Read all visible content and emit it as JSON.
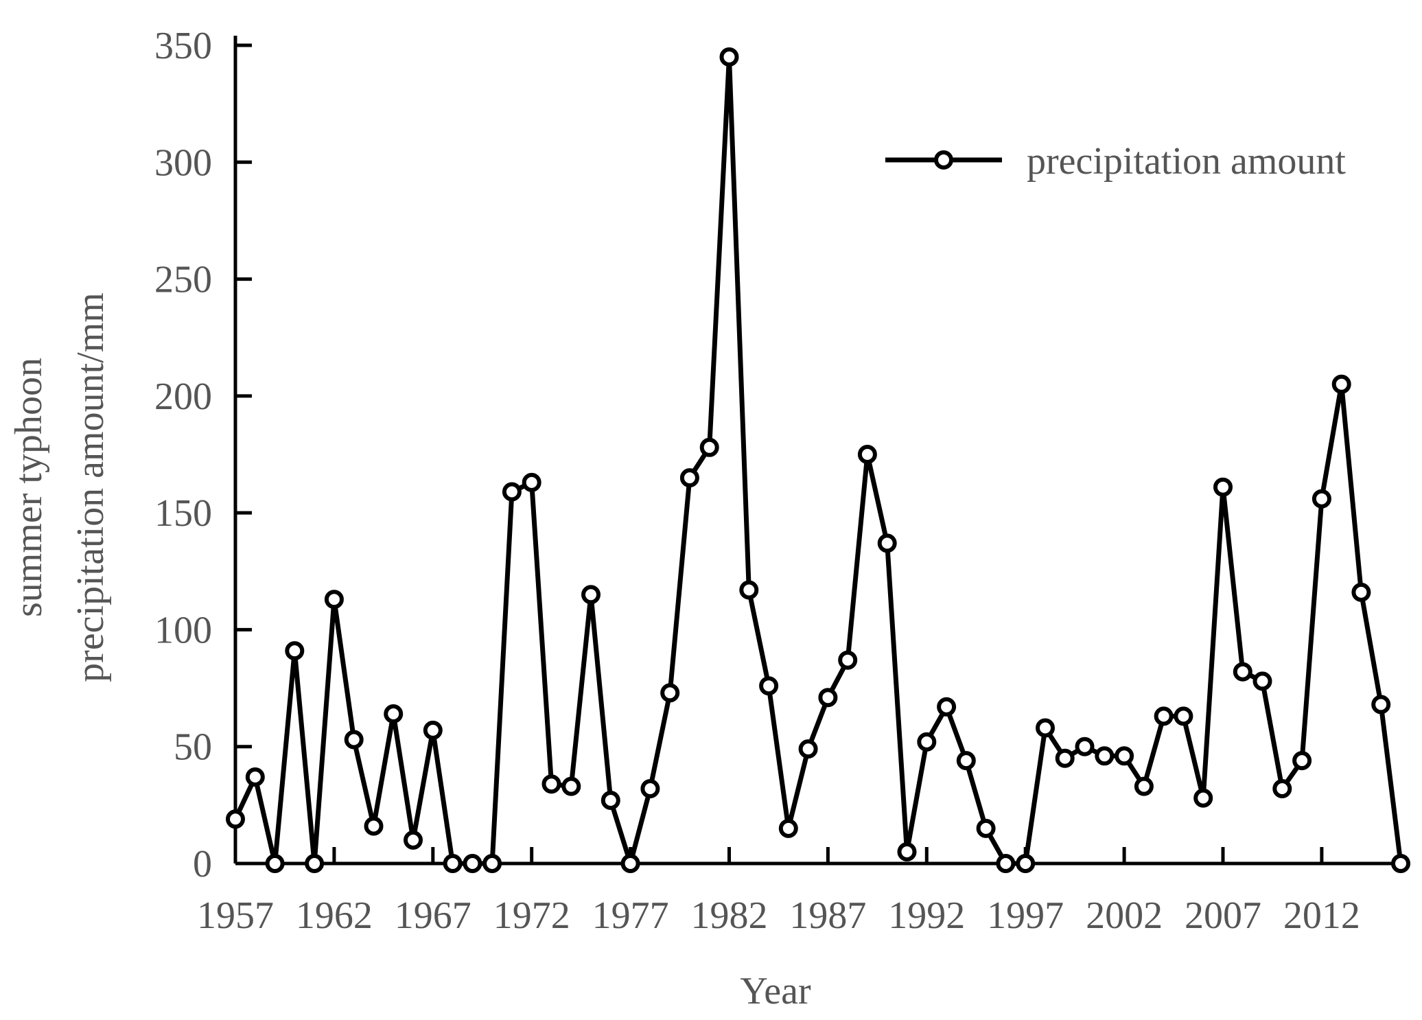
{
  "chart_data": {
    "type": "line",
    "xlabel": "Year",
    "ylabel_lines": [
      "summer typhoon",
      "precipitation amount/mm"
    ],
    "ylim": [
      0,
      350
    ],
    "yticks": [
      0,
      50,
      100,
      150,
      200,
      250,
      300,
      350
    ],
    "xticks": [
      1957,
      1962,
      1967,
      1972,
      1977,
      1982,
      1987,
      1992,
      1997,
      2002,
      2007,
      2012
    ],
    "legend": {
      "position": "top-right",
      "label": "precipitation amount"
    },
    "grid": false,
    "series": [
      {
        "name": "precipitation amount",
        "color": "#000000",
        "x": [
          1957,
          1958,
          1959,
          1960,
          1961,
          1962,
          1963,
          1964,
          1965,
          1966,
          1967,
          1968,
          1969,
          1970,
          1971,
          1972,
          1973,
          1974,
          1975,
          1976,
          1977,
          1978,
          1979,
          1980,
          1981,
          1982,
          1983,
          1984,
          1985,
          1986,
          1987,
          1988,
          1989,
          1990,
          1991,
          1992,
          1993,
          1994,
          1995,
          1996,
          1997,
          1998,
          1999,
          2000,
          2001,
          2002,
          2003,
          2004,
          2005,
          2006,
          2007,
          2008,
          2009,
          2010,
          2011,
          2012,
          2013,
          2014,
          2015,
          2016
        ],
        "values": [
          19,
          37,
          0,
          91,
          0,
          113,
          53,
          16,
          64,
          10,
          57,
          0,
          0,
          0,
          159,
          163,
          34,
          33,
          115,
          27,
          0,
          32,
          73,
          165,
          178,
          345,
          117,
          76,
          15,
          49,
          71,
          87,
          175,
          137,
          5,
          52,
          67,
          44,
          15,
          0,
          0,
          58,
          45,
          50,
          46,
          46,
          33,
          63,
          63,
          28,
          161,
          82,
          78,
          32,
          44,
          156,
          205,
          116,
          68,
          0
        ]
      }
    ]
  }
}
